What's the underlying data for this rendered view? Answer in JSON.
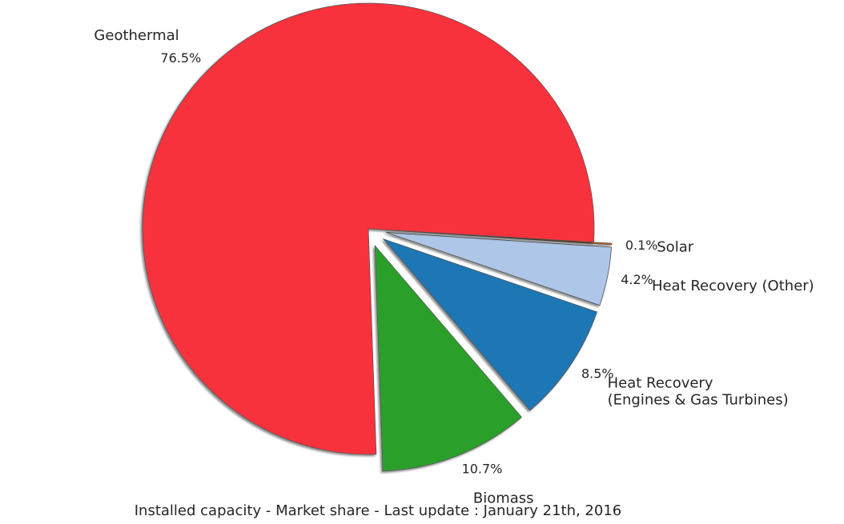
{
  "chart_data": {
    "type": "pie",
    "title": "",
    "caption": "Installed capacity - Market share - Last update : January 21th, 2016",
    "slices": [
      {
        "label": "Biomass",
        "value": 10.7,
        "pct_label": "10.7%",
        "color": "#2ca02c"
      },
      {
        "label": "Heat Recovery\n(Engines & Gas Turbines)",
        "value": 8.5,
        "pct_label": "8.5%",
        "color": "#1f77b4"
      },
      {
        "label": "Heat Recovery (Other)",
        "value": 4.2,
        "pct_label": "4.2%",
        "color": "#aec7e8"
      },
      {
        "label": "Solar",
        "value": 0.1,
        "pct_label": "0.1%",
        "color": "#d95f02"
      },
      {
        "label": "Geothermal",
        "value": 76.5,
        "pct_label": "76.5%",
        "color": "#f8313d"
      }
    ],
    "explode": [
      0.08,
      0.08,
      0.08,
      0.08,
      0
    ],
    "shadow": true,
    "legend": "none"
  }
}
